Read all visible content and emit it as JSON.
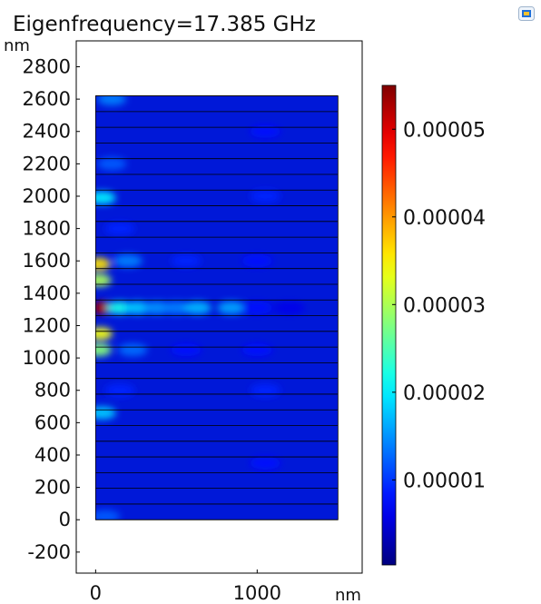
{
  "chart_data": {
    "type": "heatmap",
    "title": "Eigenfrequency=17.385 GHz",
    "xlabel": "nm",
    "ylabel": "nm",
    "xlim": [
      -120,
      1650
    ],
    "ylim": [
      -330,
      2960
    ],
    "x_ticks": [
      "0",
      "1000"
    ],
    "y_ticks": [
      "-200",
      "0",
      "200",
      "400",
      "600",
      "800",
      "1000",
      "1200",
      "1400",
      "1600",
      "1800",
      "2000",
      "2200",
      "2400",
      "2600",
      "2800"
    ],
    "domain": {
      "x": [
        0,
        1500
      ],
      "y": [
        0,
        2620
      ]
    },
    "layer_count": 27,
    "colorbar": {
      "min": 3e-07,
      "max": 5.5e-05,
      "ticks": [
        "0.00001",
        "0.00002",
        "0.00003",
        "0.00004",
        "0.00005"
      ],
      "colormap": "jet"
    },
    "hotspots": [
      {
        "x": 40,
        "y": 1310,
        "value": 5.3e-05
      },
      {
        "x": 20,
        "y": 1580,
        "value": 3.6e-05
      },
      {
        "x": 20,
        "y": 1480,
        "value": 3e-05
      },
      {
        "x": 30,
        "y": 1150,
        "value": 3.4e-05
      },
      {
        "x": 20,
        "y": 1050,
        "value": 2.8e-05
      },
      {
        "x": 40,
        "y": 1990,
        "value": 2e-05
      },
      {
        "x": 40,
        "y": 660,
        "value": 1.8e-05
      },
      {
        "x": 150,
        "y": 1310,
        "value": 2.2e-05
      },
      {
        "x": 260,
        "y": 1310,
        "value": 1.8e-05
      },
      {
        "x": 380,
        "y": 1310,
        "value": 1.5e-05
      },
      {
        "x": 500,
        "y": 1310,
        "value": 1.4e-05
      },
      {
        "x": 630,
        "y": 1310,
        "value": 1.7e-05
      },
      {
        "x": 840,
        "y": 1310,
        "value": 1.6e-05
      },
      {
        "x": 1000,
        "y": 1310,
        "value": 8e-06
      },
      {
        "x": 1200,
        "y": 1310,
        "value": 6e-06
      },
      {
        "x": 200,
        "y": 1600,
        "value": 1.4e-05
      },
      {
        "x": 230,
        "y": 1050,
        "value": 1.3e-05
      },
      {
        "x": 100,
        "y": 2200,
        "value": 1.2e-05
      },
      {
        "x": 100,
        "y": 2600,
        "value": 1.4e-05
      },
      {
        "x": 60,
        "y": 20,
        "value": 1.2e-05
      },
      {
        "x": 560,
        "y": 1600,
        "value": 9e-06
      },
      {
        "x": 1000,
        "y": 1600,
        "value": 8e-06
      },
      {
        "x": 560,
        "y": 1050,
        "value": 8e-06
      },
      {
        "x": 1000,
        "y": 1050,
        "value": 8e-06
      },
      {
        "x": 1050,
        "y": 2000,
        "value": 9e-06
      },
      {
        "x": 1050,
        "y": 800,
        "value": 9e-06
      },
      {
        "x": 1050,
        "y": 2400,
        "value": 8e-06
      },
      {
        "x": 1050,
        "y": 350,
        "value": 8e-06
      },
      {
        "x": 150,
        "y": 1800,
        "value": 9e-06
      },
      {
        "x": 150,
        "y": 800,
        "value": 9e-06
      }
    ]
  },
  "toolbar": {
    "icon": "image-export-icon"
  }
}
